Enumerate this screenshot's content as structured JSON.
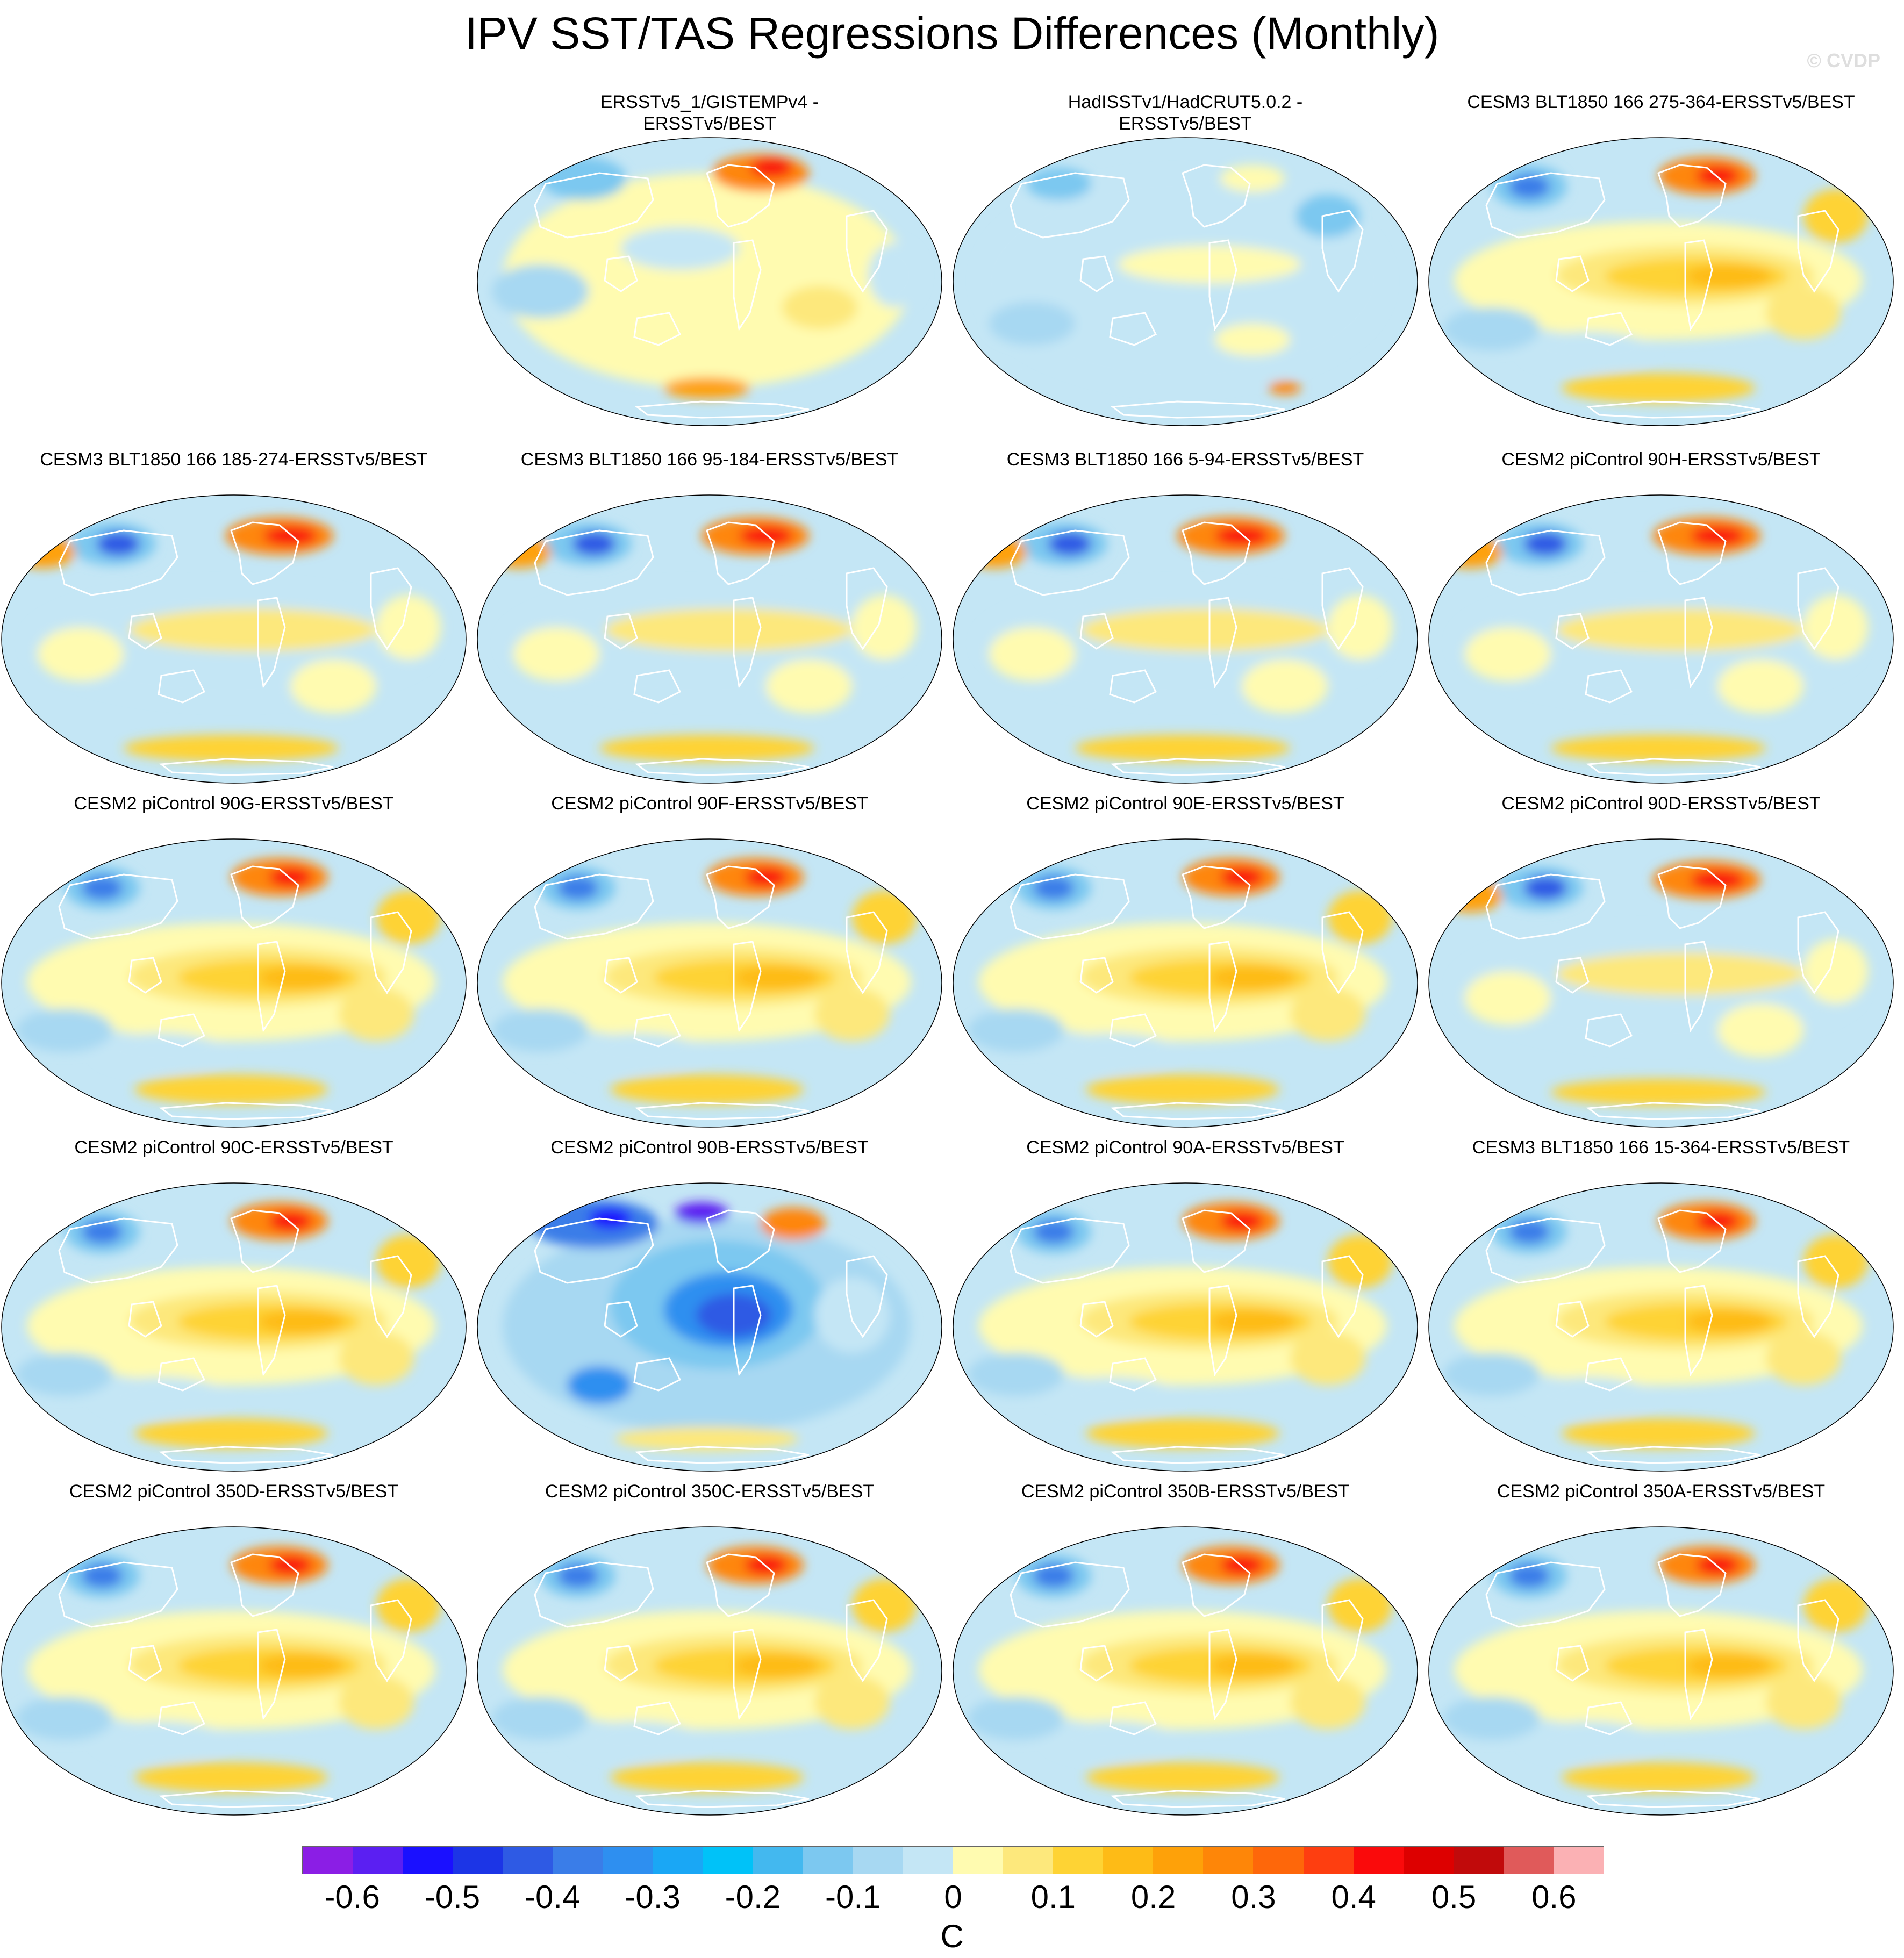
{
  "title": "IPV SST/TAS Regressions Differences (Monthly)",
  "copyright": "© CVDP",
  "units": "C",
  "colorbar": {
    "colors": [
      "#8b1ee5",
      "#5b1ff2",
      "#1a10ff",
      "#1c35e6",
      "#2e5ae4",
      "#3a7de8",
      "#2e8ff0",
      "#1aa7f5",
      "#00c2f8",
      "#43b8ef",
      "#7cc8f0",
      "#a7d8f2",
      "#c4e6f5",
      "#fffbb0",
      "#fde87c",
      "#fed334",
      "#febb16",
      "#fea109",
      "#fe8608",
      "#fe670a",
      "#fe3e10",
      "#fa0a0b",
      "#dd0000",
      "#c10a0b",
      "#e05a5a",
      "#fbb1b4"
    ],
    "labels": [
      "-0.6",
      "-0.5",
      "-0.4",
      "-0.3",
      "-0.2",
      "-0.1",
      "0",
      "0.1",
      "0.2",
      "0.3",
      "0.4",
      "0.5",
      "0.6"
    ]
  },
  "panels": [
    {
      "title": "ERSSTv5_1/GISTEMPv4 -\nERSSTv5/BEST",
      "pattern": "obs1"
    },
    {
      "title": "HadISSTv1/HadCRUT5.0.2 -\nERSSTv5/BEST",
      "pattern": "obs2"
    },
    {
      "title": "CESM3 BLT1850 166 275-364-ERSSTv5/BEST",
      "pattern": "warm"
    },
    {
      "title": "CESM3 BLT1850 166 185-274-ERSSTv5/BEST",
      "pattern": "mixed"
    },
    {
      "title": "CESM3 BLT1850 166 95-184-ERSSTv5/BEST",
      "pattern": "mixed"
    },
    {
      "title": "CESM3 BLT1850 166 5-94-ERSSTv5/BEST",
      "pattern": "mixed"
    },
    {
      "title": "CESM2 piControl 90H-ERSSTv5/BEST",
      "pattern": "mixed"
    },
    {
      "title": "CESM2 piControl 90G-ERSSTv5/BEST",
      "pattern": "warm"
    },
    {
      "title": "CESM2 piControl 90F-ERSSTv5/BEST",
      "pattern": "warm"
    },
    {
      "title": "CESM2 piControl 90E-ERSSTv5/BEST",
      "pattern": "warm"
    },
    {
      "title": "CESM2 piControl 90D-ERSSTv5/BEST",
      "pattern": "mixed"
    },
    {
      "title": "CESM2 piControl 90C-ERSSTv5/BEST",
      "pattern": "warm"
    },
    {
      "title": "CESM2 piControl 90B-ERSSTv5/BEST",
      "pattern": "cold"
    },
    {
      "title": "CESM2 piControl 90A-ERSSTv5/BEST",
      "pattern": "warm"
    },
    {
      "title": "CESM3 BLT1850 166 15-364-ERSSTv5/BEST",
      "pattern": "warm"
    },
    {
      "title": "CESM2 piControl 350D-ERSSTv5/BEST",
      "pattern": "warm"
    },
    {
      "title": "CESM2 piControl 350C-ERSSTv5/BEST",
      "pattern": "warm"
    },
    {
      "title": "CESM2 piControl 350B-ERSSTv5/BEST",
      "pattern": "warm"
    },
    {
      "title": "CESM2 piControl 350A-ERSSTv5/BEST",
      "pattern": "warm"
    }
  ]
}
